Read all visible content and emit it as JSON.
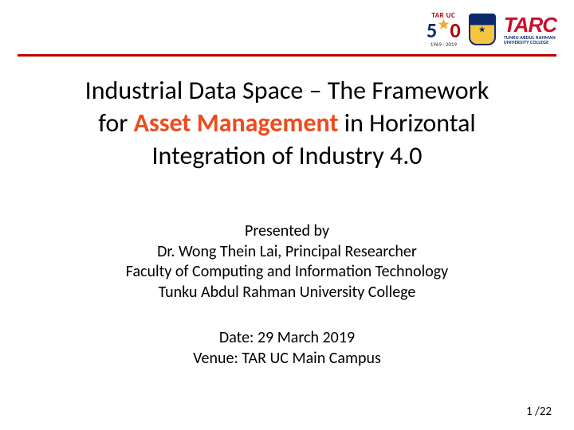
{
  "header": {
    "logo50": {
      "top": "TAR UC",
      "fifty_left": "5",
      "fifty_right": "0",
      "years": "1969 · 2019"
    },
    "crest": {
      "glyph": "★"
    },
    "tarc": {
      "word": "TARC",
      "sub1": "TUNKU ABDUL RAHMAN",
      "sub2": "UNIVERSITY COLLEGE"
    },
    "rule_color": "#c00000"
  },
  "title": {
    "line1_pre": "Industrial Data Space – The Framework",
    "line2_pre": "for ",
    "line2_highlight": "Asset Management",
    "line2_post": " in Horizontal",
    "line3": "Integration of Industry 4.0",
    "highlight_color": "#ed4c1f",
    "fontsize": 32
  },
  "presenter": {
    "l1": "Presented by",
    "l2": "Dr. Wong Thein Lai, Principal Researcher",
    "l3": "Faculty of Computing and Information Technology",
    "l4": "Tunku Abdul Rahman University College",
    "fontsize": 20
  },
  "when_where": {
    "date": "Date: 29 March 2019",
    "venue": "Venue:  TAR UC Main Campus",
    "fontsize": 20
  },
  "page": {
    "current": "1",
    "sep": " /",
    "total": "22"
  },
  "colors": {
    "background": "#ffffff",
    "text": "#000000"
  }
}
